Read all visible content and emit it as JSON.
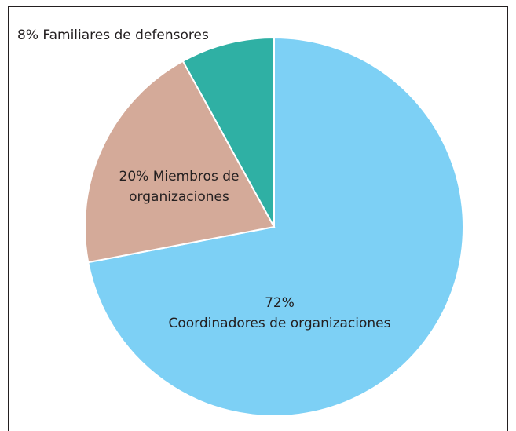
{
  "chart_data": {
    "type": "pie",
    "categories": [
      "Coordinadores de organizaciones",
      "Miembros de organizaciones",
      "Familiares de defensores"
    ],
    "values": [
      72,
      20,
      8
    ],
    "value_labels": [
      "72%",
      "20%",
      "8%"
    ],
    "colors": [
      "#7dd0f5",
      "#d4aa99",
      "#2fb0a4"
    ]
  }
}
